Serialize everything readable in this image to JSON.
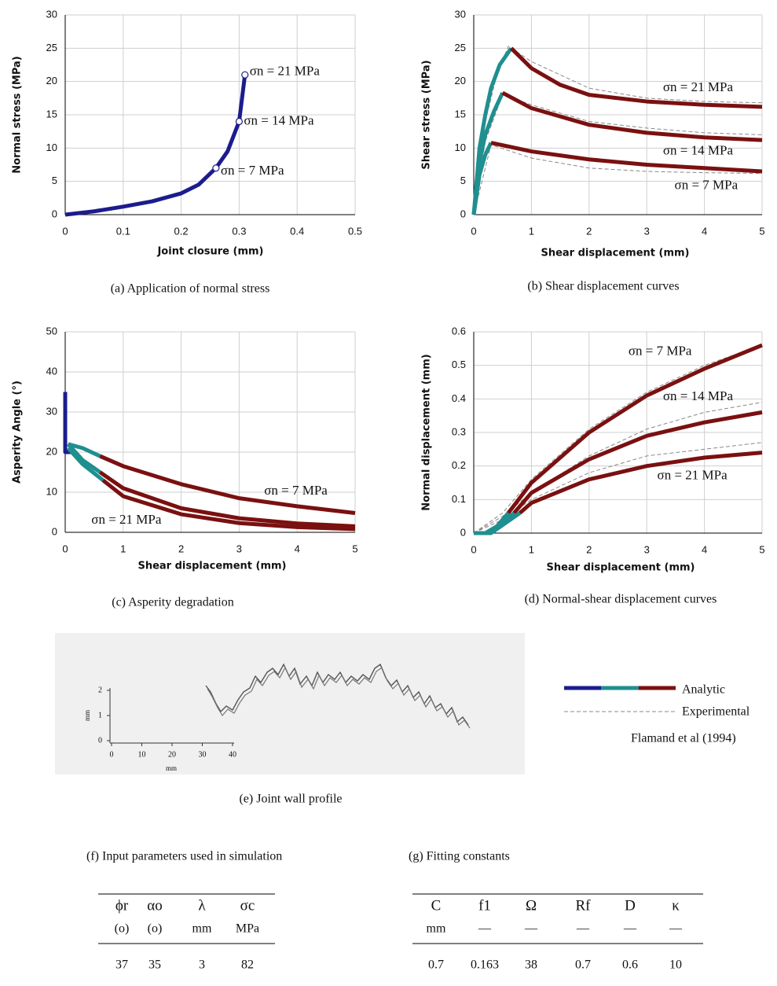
{
  "chart_data": [
    {
      "type": "line",
      "caption": "(a) Application of normal stress",
      "xlabel": "Joint closure (mm)",
      "ylabel": "Normal stress (MPa)",
      "xlim": [
        0,
        0.5
      ],
      "xticks": [
        0,
        0.1,
        0.2,
        0.3,
        0.4,
        0.5
      ],
      "ylim": [
        0,
        30
      ],
      "yticks": [
        0,
        5,
        10,
        15,
        20,
        25,
        30
      ],
      "grid": true,
      "series": [
        {
          "color": "#1c1c8e",
          "x": [
            0,
            0.05,
            0.1,
            0.15,
            0.2,
            0.23,
            0.26,
            0.28,
            0.3,
            0.31
          ],
          "values": [
            0,
            0.5,
            1.2,
            2,
            3.2,
            4.5,
            7,
            9.5,
            14,
            21
          ]
        },
        {
          "color": "#1c1c8e",
          "marker": "circle",
          "x": [
            0.26,
            0.3,
            0.31
          ],
          "values": [
            7,
            14,
            21
          ]
        }
      ],
      "annotations": [
        {
          "text": "σn = 21 MPa",
          "x": 0.31,
          "y": 21.4
        },
        {
          "text": "σn = 14 MPa",
          "x": 0.3,
          "y": 14
        },
        {
          "text": "σn = 7 MPa",
          "x": 0.26,
          "y": 6.5
        }
      ]
    },
    {
      "type": "line",
      "caption": "(b) Shear displacement curves",
      "xlabel": "Shear displacement (mm)",
      "ylabel": "Shear stress (MPa)",
      "xlim": [
        0,
        5
      ],
      "xticks": [
        0,
        1,
        2,
        3,
        4,
        5
      ],
      "ylim": [
        0,
        30
      ],
      "yticks": [
        0,
        5,
        10,
        15,
        20,
        25,
        30
      ],
      "grid": true,
      "series": [
        {
          "color": "#888888",
          "dashed": true,
          "x": [
            0,
            0.2,
            0.4,
            0.6,
            1,
            2,
            3,
            4,
            5
          ],
          "values": [
            0,
            14,
            21,
            25.3,
            23,
            19,
            17.5,
            17,
            16.8
          ]
        },
        {
          "color": "#888888",
          "dashed": true,
          "x": [
            0,
            0.2,
            0.5,
            1,
            2,
            3,
            4,
            5
          ],
          "values": [
            0,
            11,
            18,
            16.5,
            14,
            13,
            12.3,
            12
          ]
        },
        {
          "color": "#888888",
          "dashed": true,
          "x": [
            0,
            0.3,
            1,
            2,
            3,
            4,
            5
          ],
          "values": [
            0,
            10.5,
            8.5,
            7,
            6.5,
            6.3,
            6.2
          ]
        },
        {
          "color": "#1f8f8f",
          "x": [
            0,
            0.1,
            0.2,
            0.3,
            0.45,
            0.65
          ],
          "values": [
            0,
            10,
            15,
            19,
            22.5,
            25
          ]
        },
        {
          "color": "#7a1010",
          "x": [
            0.65,
            1,
            1.5,
            2,
            3,
            4,
            5
          ],
          "values": [
            25,
            22,
            19.5,
            18,
            17,
            16.5,
            16.2
          ]
        },
        {
          "color": "#1f8f8f",
          "x": [
            0,
            0.1,
            0.2,
            0.35,
            0.5
          ],
          "values": [
            0,
            8,
            12,
            15.5,
            18.3
          ]
        },
        {
          "color": "#7a1010",
          "x": [
            0.5,
            1,
            2,
            3,
            4,
            5
          ],
          "values": [
            18.3,
            16,
            13.5,
            12.3,
            11.6,
            11.2
          ]
        },
        {
          "color": "#1f8f8f",
          "x": [
            0,
            0.1,
            0.2,
            0.3
          ],
          "values": [
            0,
            6,
            9,
            10.8
          ]
        },
        {
          "color": "#7a1010",
          "x": [
            0.3,
            1,
            2,
            3,
            4,
            5
          ],
          "values": [
            10.8,
            9.5,
            8.3,
            7.5,
            7,
            6.5
          ]
        }
      ],
      "annotations": [
        {
          "text": "σn = 21 MPa",
          "x": 3.2,
          "y": 19
        },
        {
          "text": "σn = 14 MPa",
          "x": 3.2,
          "y": 9.5
        },
        {
          "text": "σn = 7 MPa",
          "x": 3.4,
          "y": 4.3
        }
      ]
    },
    {
      "type": "line",
      "caption": "(c) Asperity degradation",
      "xlabel": "Shear displacement (mm)",
      "ylabel": "Asperity Angle (°)",
      "xlim": [
        0,
        5
      ],
      "xticks": [
        0,
        1,
        2,
        3,
        4,
        5
      ],
      "ylim": [
        0,
        50
      ],
      "yticks": [
        0,
        10,
        20,
        30,
        40,
        50
      ],
      "grid": true,
      "series": [
        {
          "color": "#1c1c8e",
          "x": [
            0,
            0,
            0.05,
            0.1
          ],
          "values": [
            35,
            20,
            20,
            20
          ]
        },
        {
          "color": "#1f8f8f",
          "x": [
            0.05,
            0.3,
            0.6
          ],
          "values": [
            22,
            21,
            19
          ]
        },
        {
          "color": "#7a1010",
          "x": [
            0.6,
            1,
            2,
            3,
            4,
            5
          ],
          "values": [
            19,
            16.5,
            12,
            8.5,
            6.5,
            4.8
          ]
        },
        {
          "color": "#1f8f8f",
          "x": [
            0.05,
            0.3,
            0.6
          ],
          "values": [
            22,
            18,
            15
          ]
        },
        {
          "color": "#7a1010",
          "x": [
            0.6,
            1,
            2,
            3,
            4,
            5
          ],
          "values": [
            15,
            11,
            6,
            3.5,
            2.2,
            1.5
          ]
        },
        {
          "color": "#1f8f8f",
          "x": [
            0.05,
            0.3,
            0.65
          ],
          "values": [
            21,
            17,
            13
          ]
        },
        {
          "color": "#7a1010",
          "x": [
            0.65,
            1,
            2,
            3,
            4,
            5
          ],
          "values": [
            13,
            9,
            4.5,
            2.3,
            1.3,
            0.8
          ]
        }
      ],
      "annotations": [
        {
          "text": "σn = 7 MPa",
          "x": 3.35,
          "y": 10.2
        },
        {
          "text": "σn = 21 MPa",
          "x": 0.37,
          "y": 2.9
        }
      ]
    },
    {
      "type": "line",
      "caption": "(d) Normal-shear displacement curves",
      "xlabel": "Shear displacement (mm)",
      "ylabel": "Normal displacement (mm)",
      "xlim": [
        0,
        5
      ],
      "xticks": [
        0,
        1,
        2,
        3,
        4,
        5
      ],
      "ylim": [
        0,
        0.6
      ],
      "yticks": [
        0,
        0.1,
        0.2,
        0.3,
        0.4,
        0.5,
        0.6
      ],
      "grid": true,
      "series": [
        {
          "color": "#888888",
          "dashed": true,
          "x": [
            0,
            0.5,
            1,
            2,
            3,
            4,
            5
          ],
          "values": [
            0,
            0.06,
            0.16,
            0.31,
            0.42,
            0.5,
            0.56
          ]
        },
        {
          "color": "#888888",
          "dashed": true,
          "x": [
            0,
            0.5,
            1,
            2,
            3,
            4,
            5
          ],
          "values": [
            0,
            0.05,
            0.12,
            0.23,
            0.31,
            0.36,
            0.39
          ]
        },
        {
          "color": "#888888",
          "dashed": true,
          "x": [
            0,
            0.5,
            1,
            2,
            3,
            4,
            5
          ],
          "values": [
            0,
            0.04,
            0.1,
            0.18,
            0.23,
            0.25,
            0.27
          ]
        },
        {
          "color": "#1f8f8f",
          "x": [
            0,
            0.2,
            0.4,
            0.6
          ],
          "values": [
            0,
            0,
            0.02,
            0.06
          ]
        },
        {
          "color": "#7a1010",
          "x": [
            0.6,
            1,
            2,
            3,
            4,
            5
          ],
          "values": [
            0.06,
            0.15,
            0.3,
            0.41,
            0.49,
            0.56
          ]
        },
        {
          "color": "#1f8f8f",
          "x": [
            0,
            0.25,
            0.5,
            0.7
          ],
          "values": [
            0,
            0,
            0.03,
            0.06
          ]
        },
        {
          "color": "#7a1010",
          "x": [
            0.7,
            1,
            2,
            3,
            4,
            5
          ],
          "values": [
            0.06,
            0.12,
            0.22,
            0.29,
            0.33,
            0.36
          ]
        },
        {
          "color": "#1f8f8f",
          "x": [
            0,
            0.3,
            0.55,
            0.8
          ],
          "values": [
            0,
            0,
            0.03,
            0.06
          ]
        },
        {
          "color": "#7a1010",
          "x": [
            0.8,
            1,
            2,
            3,
            4,
            5
          ],
          "values": [
            0.06,
            0.09,
            0.16,
            0.2,
            0.225,
            0.24
          ]
        }
      ],
      "annotations": [
        {
          "text": "σn = 7 MPa",
          "x": 2.6,
          "y": 0.54
        },
        {
          "text": "σn = 14 MPa",
          "x": 3.2,
          "y": 0.405
        },
        {
          "text": "σn = 21 MPa",
          "x": 3.1,
          "y": 0.17
        }
      ]
    }
  ],
  "profile": {
    "caption": "(e) Joint wall profile",
    "xticks": [
      0,
      10,
      20,
      30,
      40
    ],
    "yticks": [
      0,
      1,
      2
    ],
    "xlabel": "mm",
    "ylabel": "mm"
  },
  "legend": {
    "items": [
      "Analytic",
      "Experimental"
    ],
    "colors": [
      "#1c1c8e",
      "#1f8f8f",
      "#7a1010"
    ],
    "source": "Flamand et al (1994)"
  },
  "tables": [
    {
      "title": "(f) Input parameters used in simulation",
      "headers": [
        "ϕr",
        "αo",
        "λ",
        "σc"
      ],
      "units": [
        "(o)",
        "(o)",
        "mm",
        "MPa"
      ],
      "values": [
        37,
        35,
        3,
        82
      ]
    },
    {
      "title": "(g) Fitting constants",
      "headers": [
        "C",
        "f1",
        "Ω",
        "Rf",
        "D",
        "κ"
      ],
      "units": [
        "mm",
        "—",
        "—",
        "—",
        "—",
        "—"
      ],
      "values": [
        0.7,
        0.163,
        38,
        0.7,
        0.6,
        10
      ]
    }
  ]
}
